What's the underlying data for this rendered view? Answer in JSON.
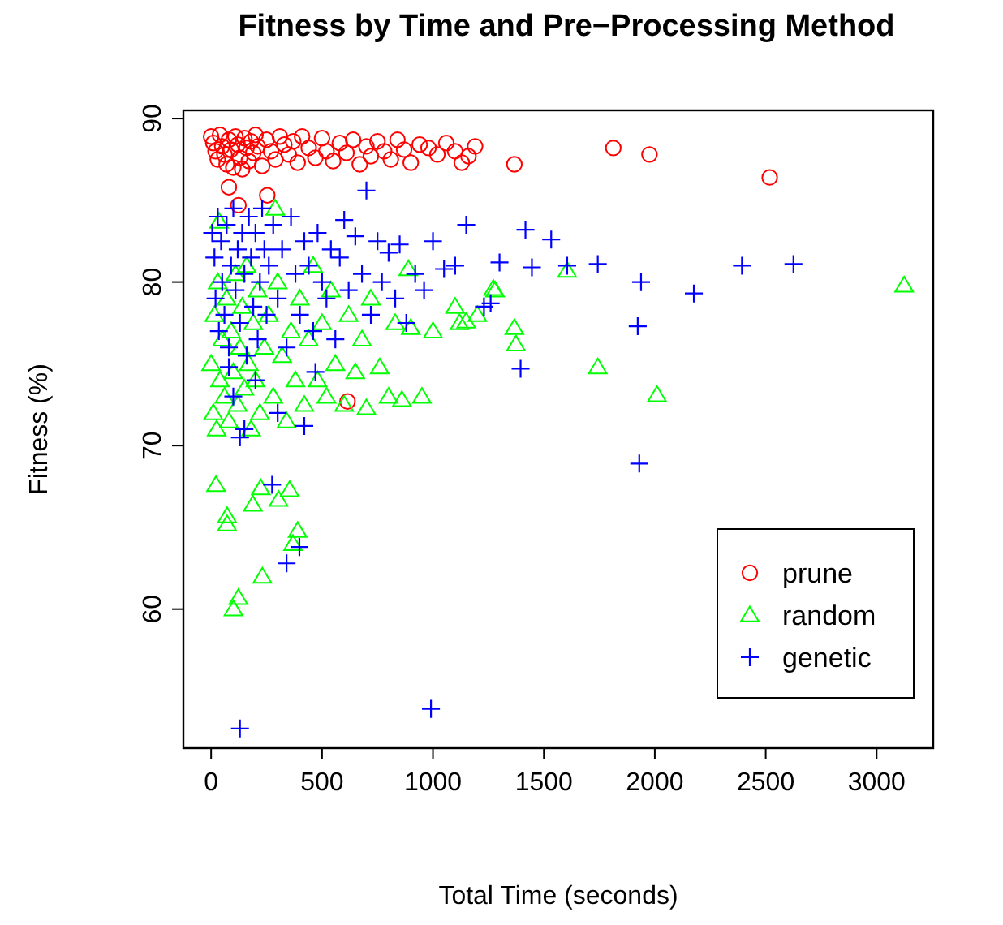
{
  "chart_data": {
    "type": "scatter",
    "title": "Fitness by Time and Pre−Processing Method",
    "xlabel": "Total Time (seconds)",
    "ylabel": "Fitness (%)",
    "xlim": [
      -125,
      3255
    ],
    "ylim": [
      51.5,
      90.5
    ],
    "xticks": [
      0,
      500,
      1000,
      1500,
      2000,
      2500,
      3000
    ],
    "yticks": [
      60,
      70,
      80,
      90
    ],
    "grid": false,
    "legend": "bottom right",
    "series": [
      {
        "name": "prune",
        "color": "#ff0000",
        "marker": "circle",
        "x": [
          0,
          10,
          20,
          30,
          40,
          50,
          60,
          70,
          80,
          90,
          100,
          110,
          120,
          130,
          140,
          150,
          160,
          170,
          180,
          190,
          200,
          210,
          230,
          250,
          270,
          290,
          310,
          330,
          350,
          370,
          390,
          410,
          440,
          470,
          500,
          520,
          550,
          580,
          610,
          640,
          670,
          700,
          720,
          750,
          780,
          810,
          840,
          870,
          900,
          940,
          980,
          1020,
          1060,
          1100,
          1130,
          1160,
          1190,
          80,
          123,
          253,
          1367,
          1813,
          1976,
          2518,
          615
        ],
        "values": [
          88.9,
          88.5,
          88.0,
          87.5,
          89.0,
          88.3,
          87.8,
          87.2,
          88.7,
          88.1,
          87.0,
          88.9,
          88.4,
          87.6,
          86.9,
          88.8,
          88.2,
          87.4,
          88.6,
          87.9,
          89.0,
          88.3,
          87.1,
          88.7,
          88.0,
          87.5,
          88.9,
          88.4,
          87.8,
          88.6,
          87.3,
          88.9,
          88.2,
          87.6,
          88.8,
          88.0,
          87.4,
          88.5,
          87.9,
          88.7,
          87.2,
          88.3,
          87.7,
          88.6,
          88.0,
          87.5,
          88.7,
          88.1,
          87.3,
          88.4,
          88.2,
          87.8,
          88.5,
          88.0,
          87.3,
          87.7,
          88.3,
          85.8,
          84.7,
          85.3,
          87.2,
          88.2,
          87.8,
          86.4,
          72.7
        ]
      },
      {
        "name": "random",
        "color": "#00ff00",
        "marker": "triangle",
        "x": [
          0,
          10,
          15,
          25,
          30,
          40,
          50,
          60,
          70,
          80,
          90,
          100,
          110,
          120,
          130,
          140,
          150,
          160,
          170,
          180,
          190,
          200,
          210,
          220,
          240,
          260,
          280,
          300,
          320,
          340,
          360,
          380,
          400,
          420,
          440,
          460,
          480,
          500,
          520,
          540,
          560,
          600,
          620,
          650,
          680,
          700,
          720,
          760,
          800,
          830,
          860,
          900,
          950,
          1000,
          1100,
          1120,
          1150,
          1280,
          1200,
          36,
          289,
          889,
          1272,
          1367,
          3124,
          1605,
          1743,
          2010,
          1374,
          22,
          72,
          72,
          188,
          304,
          354,
          369,
          123,
          101,
          231,
          390,
          224
        ],
        "values": [
          75,
          72,
          78,
          71,
          80,
          74,
          76.5,
          73,
          79,
          71.5,
          77,
          74.5,
          80.5,
          72.5,
          76,
          78.5,
          73.5,
          81,
          75,
          71,
          77.5,
          74,
          79.5,
          72,
          76,
          78,
          73,
          80,
          75.5,
          71.5,
          77,
          74,
          79,
          72.5,
          76.5,
          81,
          74,
          77.5,
          73,
          79.5,
          75,
          72.5,
          78,
          74.5,
          76.5,
          72.3,
          79,
          74.8,
          73,
          77.5,
          72.8,
          77.2,
          73,
          77,
          78.5,
          77.5,
          77.6,
          79.5,
          78,
          83.7,
          84.5,
          80.8,
          79.6,
          77.2,
          79.8,
          80.7,
          74.8,
          73.1,
          76.2,
          67.6,
          65.7,
          65.2,
          66.4,
          66.7,
          67.3,
          64.0,
          60.7,
          60.0,
          62.0,
          64.8,
          67.4
        ]
      },
      {
        "name": "genetic",
        "color": "#0000ff",
        "marker": "cross",
        "x": [
          5,
          15,
          20,
          30,
          35,
          45,
          50,
          60,
          70,
          80,
          90,
          100,
          110,
          120,
          130,
          140,
          150,
          160,
          170,
          180,
          190,
          200,
          210,
          220,
          230,
          240,
          250,
          260,
          280,
          300,
          320,
          340,
          360,
          380,
          400,
          420,
          440,
          460,
          480,
          500,
          520,
          540,
          560,
          580,
          600,
          620,
          650,
          680,
          700,
          720,
          750,
          770,
          800,
          830,
          850,
          880,
          920,
          960,
          1000,
          1050,
          1100,
          1150,
          1230,
          1260,
          1300,
          100,
          150,
          200,
          300,
          420,
          470,
          130,
          80,
          275,
          340,
          398,
          130,
          991,
          1417,
          1533,
          1446,
          1605,
          1743,
          1938,
          1923,
          2393,
          2625,
          2176,
          1930,
          1395
        ],
        "values": [
          83,
          81.5,
          79,
          84,
          77,
          82.5,
          80,
          78,
          83.5,
          76,
          81,
          84.5,
          79.5,
          82,
          77.5,
          83,
          80.5,
          75.5,
          84,
          81.5,
          78.5,
          83,
          76.5,
          80,
          84.5,
          82,
          78,
          81,
          83.5,
          79,
          82,
          76,
          84,
          80.5,
          78,
          82.5,
          81,
          77,
          83,
          80,
          79,
          82,
          76.5,
          81.5,
          83.8,
          79.5,
          82.8,
          80.5,
          85.6,
          78,
          82.5,
          80,
          81.8,
          79,
          82.3,
          77.5,
          80.5,
          79.5,
          82.5,
          80.8,
          81,
          83.5,
          78.5,
          78.7,
          81.2,
          73,
          71,
          74,
          72,
          71.2,
          74.5,
          70.5,
          74.8,
          67.6,
          62.8,
          63.8,
          52.7,
          53.9,
          83.2,
          82.6,
          80.9,
          81.0,
          81.1,
          80.0,
          77.3,
          81.0,
          81.1,
          79.3,
          68.9,
          74.7
        ]
      }
    ]
  }
}
